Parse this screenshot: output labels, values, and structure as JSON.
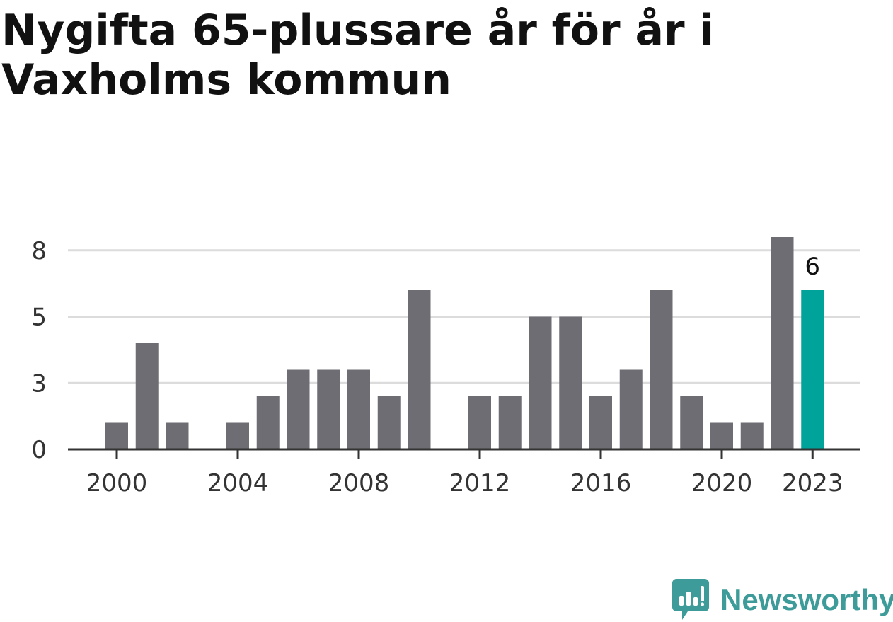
{
  "title": "Nygifta 65-plussare år för år i Vaxholms kommun",
  "colors": {
    "bar": "#6e6d73",
    "highlight": "#00a39a",
    "grid": "#dcdcdc",
    "axis": "#333333",
    "brand": "#3d9c99"
  },
  "chart_data": {
    "type": "bar",
    "title": "Nygifta 65-plussare år för år i Vaxholms kommun",
    "xlabel": "",
    "ylabel": "",
    "categories": [
      2000,
      2001,
      2002,
      2003,
      2004,
      2005,
      2006,
      2007,
      2008,
      2009,
      2010,
      2011,
      2012,
      2013,
      2014,
      2015,
      2016,
      2017,
      2018,
      2019,
      2020,
      2021,
      2022,
      2023
    ],
    "values": [
      1,
      4,
      1,
      0,
      1,
      2,
      3,
      3,
      3,
      2,
      6,
      0,
      2,
      2,
      5,
      5,
      2,
      3,
      6,
      2,
      1,
      1,
      8,
      6
    ],
    "highlight_category": 2023,
    "highlight_label": "6",
    "ylim": [
      0,
      8
    ],
    "yticks": [
      {
        "value": 0,
        "label": "0"
      },
      {
        "value": 2.5,
        "label": "3"
      },
      {
        "value": 5,
        "label": "5"
      },
      {
        "value": 7.5,
        "label": "8"
      }
    ],
    "xticks": [
      {
        "value": 2000,
        "label": "2000"
      },
      {
        "value": 2004,
        "label": "2004"
      },
      {
        "value": 2008,
        "label": "2008"
      },
      {
        "value": 2012,
        "label": "2012"
      },
      {
        "value": 2016,
        "label": "2016"
      },
      {
        "value": 2020,
        "label": "2020"
      },
      {
        "value": 2023,
        "label": "2023"
      }
    ],
    "grid": true
  },
  "brand": {
    "name": "Newsworthy",
    "icon": "newsworthy-logo-icon"
  }
}
